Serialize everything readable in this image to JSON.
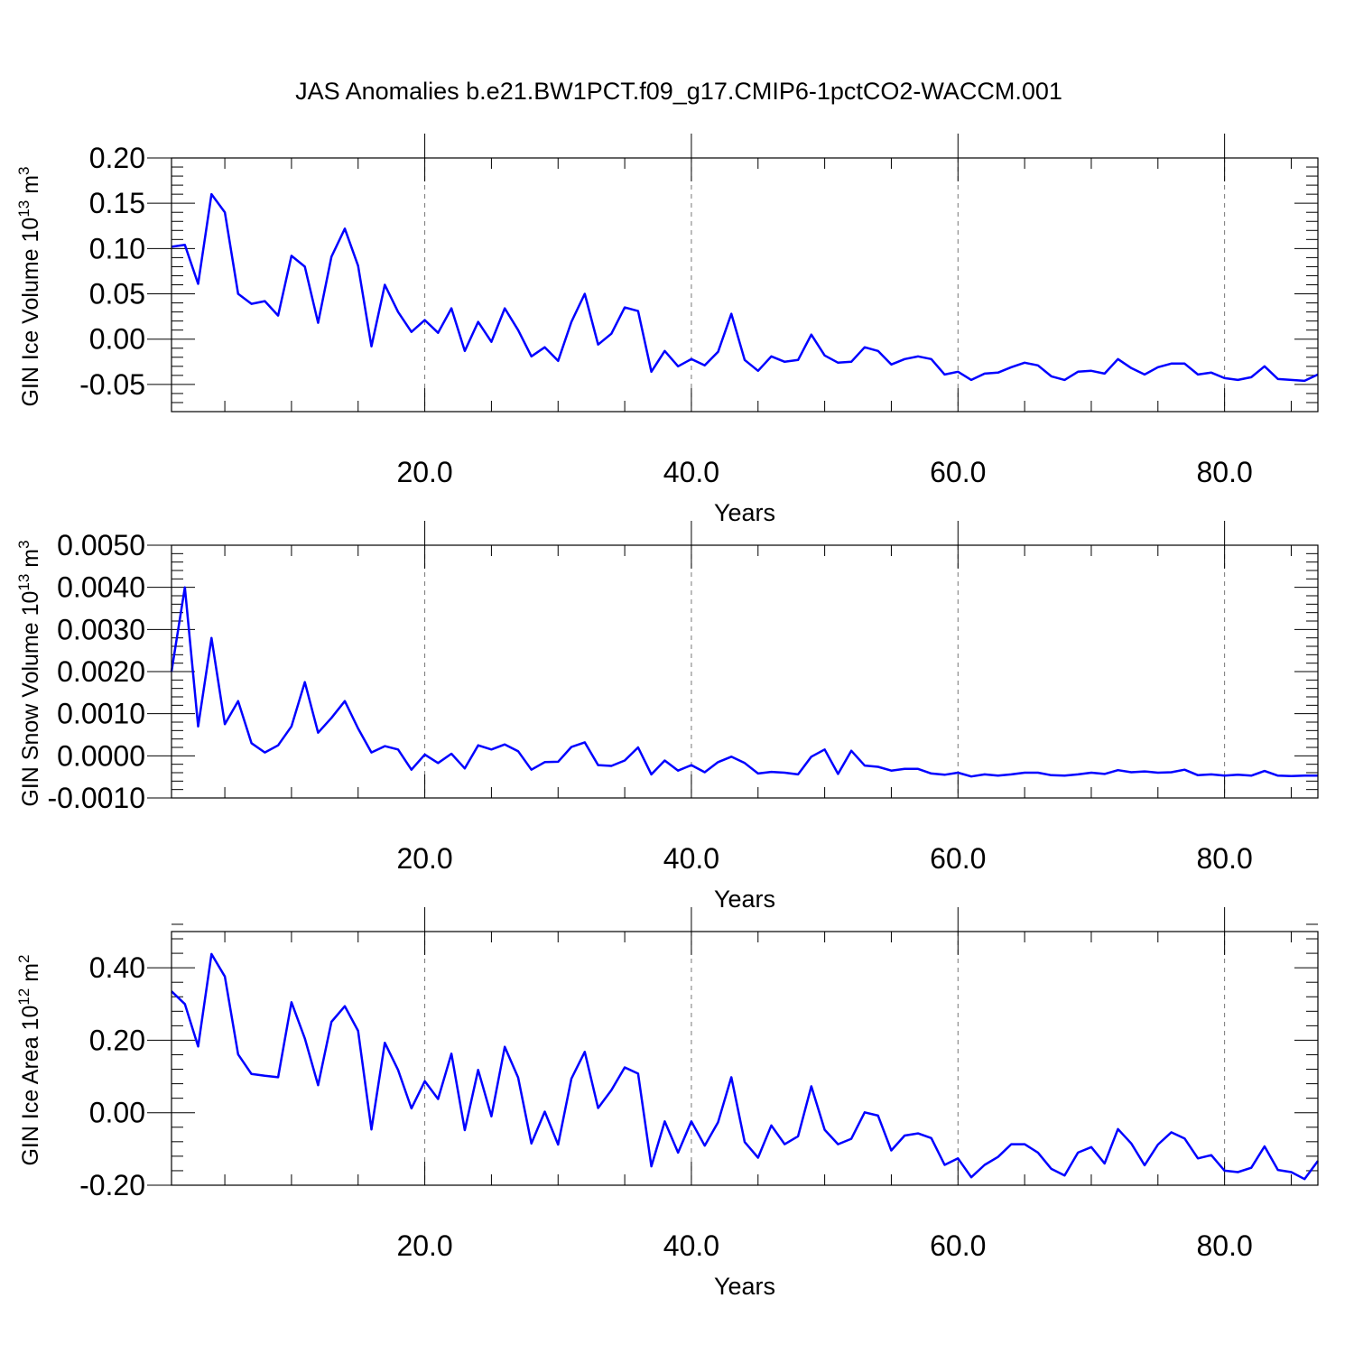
{
  "page_title": "JAS Anomalies b.e21.BW1PCT.f09_g17.CMIP6-1pctCO2-WACCM.001",
  "chart_data": [
    {
      "type": "line",
      "title": "",
      "xlabel": "Years",
      "ylabel": {
        "text": "GIN Ice Volume 10",
        "sup": "13",
        "unit": " m",
        "unit_sup": "3"
      },
      "xlim": [
        1,
        87
      ],
      "ylim": [
        -0.08,
        0.2
      ],
      "xticks": [
        20,
        40,
        60,
        80
      ],
      "xtick_labels": [
        "20.0",
        "40.0",
        "60.0",
        "80.0"
      ],
      "yticks": [
        -0.05,
        0.0,
        0.05,
        0.1,
        0.15,
        0.2
      ],
      "ytick_labels": [
        "-0.05",
        "0.00",
        "0.05",
        "0.10",
        "0.15",
        "0.20"
      ],
      "y_minor_step": 0.01,
      "grid": "vertical dashed at major x ticks",
      "color": "#0000ff",
      "x_start": 1,
      "values": [
        0.102,
        0.104,
        0.061,
        0.16,
        0.14,
        0.05,
        0.039,
        0.042,
        0.026,
        0.092,
        0.08,
        0.018,
        0.091,
        0.122,
        0.081,
        -0.008,
        0.06,
        0.03,
        0.008,
        0.021,
        0.007,
        0.034,
        -0.013,
        0.019,
        -0.003,
        0.034,
        0.01,
        -0.019,
        -0.009,
        -0.024,
        0.019,
        0.05,
        -0.006,
        0.006,
        0.035,
        0.031,
        -0.036,
        -0.013,
        -0.03,
        -0.022,
        -0.029,
        -0.014,
        0.028,
        -0.023,
        -0.035,
        -0.019,
        -0.025,
        -0.023,
        0.005,
        -0.018,
        -0.026,
        -0.025,
        -0.009,
        -0.013,
        -0.028,
        -0.022,
        -0.019,
        -0.022,
        -0.039,
        -0.036,
        -0.045,
        -0.038,
        -0.037,
        -0.031,
        -0.026,
        -0.029,
        -0.041,
        -0.045,
        -0.036,
        -0.035,
        -0.038,
        -0.022,
        -0.032,
        -0.039,
        -0.031,
        -0.027,
        -0.027,
        -0.039,
        -0.037,
        -0.043,
        -0.045,
        -0.042,
        -0.03,
        -0.044,
        -0.045,
        -0.046,
        -0.039
      ]
    },
    {
      "type": "line",
      "title": "",
      "xlabel": "Years",
      "ylabel": {
        "text": "GIN Snow Volume 10",
        "sup": "13",
        "unit": " m",
        "unit_sup": "3"
      },
      "xlim": [
        1,
        87
      ],
      "ylim": [
        -0.001,
        0.005
      ],
      "xticks": [
        20,
        40,
        60,
        80
      ],
      "xtick_labels": [
        "20.0",
        "40.0",
        "60.0",
        "80.0"
      ],
      "yticks": [
        -0.001,
        0.0,
        0.001,
        0.002,
        0.003,
        0.004,
        0.005
      ],
      "ytick_labels": [
        "-0.0010",
        "0.0000",
        "0.0010",
        "0.0020",
        "0.0030",
        "0.0040",
        "0.0050"
      ],
      "y_minor_step": 0.0002,
      "grid": "vertical dashed at major x ticks",
      "color": "#0000ff",
      "x_start": 1,
      "values": [
        0.002,
        0.004,
        0.0007,
        0.0028,
        0.00075,
        0.0013,
        0.0003,
        8e-05,
        0.00025,
        0.0007,
        0.00175,
        0.00055,
        0.0009,
        0.0013,
        0.00065,
        8e-05,
        0.00023,
        0.00015,
        -0.00033,
        3e-05,
        -0.00017,
        5e-05,
        -0.0003,
        0.00025,
        0.00015,
        0.00027,
        0.00011,
        -0.00033,
        -0.00015,
        -0.00014,
        0.00021,
        0.00032,
        -0.00022,
        -0.00024,
        -0.00011,
        0.0002,
        -0.00044,
        -0.00011,
        -0.00035,
        -0.00022,
        -0.00039,
        -0.00015,
        -2e-05,
        -0.00017,
        -0.00042,
        -0.00038,
        -0.0004,
        -0.00044,
        -2e-05,
        0.00015,
        -0.00043,
        0.00012,
        -0.00023,
        -0.00026,
        -0.00035,
        -0.00031,
        -0.00031,
        -0.00042,
        -0.00045,
        -0.0004,
        -0.00049,
        -0.00044,
        -0.00047,
        -0.00044,
        -0.0004,
        -0.0004,
        -0.00046,
        -0.00047,
        -0.00044,
        -0.0004,
        -0.00043,
        -0.00034,
        -0.00039,
        -0.00037,
        -0.0004,
        -0.00039,
        -0.00033,
        -0.00046,
        -0.00044,
        -0.00047,
        -0.00045,
        -0.00047,
        -0.00036,
        -0.00047,
        -0.00048,
        -0.00047,
        -0.00047
      ]
    },
    {
      "type": "line",
      "title": "",
      "xlabel": "Years",
      "ylabel": {
        "text": "GIN Ice Area 10",
        "sup": "12",
        "unit": " m",
        "unit_sup": "2"
      },
      "xlim": [
        1,
        87
      ],
      "ylim": [
        -0.2,
        0.5
      ],
      "xticks": [
        20,
        40,
        60,
        80
      ],
      "xtick_labels": [
        "20.0",
        "40.0",
        "60.0",
        "80.0"
      ],
      "yticks": [
        -0.2,
        0.0,
        0.2,
        0.4
      ],
      "ytick_labels": [
        "-0.20",
        "0.00",
        "0.20",
        "0.40"
      ],
      "y_minor_step": 0.04,
      "grid": "vertical dashed at major x ticks",
      "color": "#0000ff",
      "x_start": 1,
      "values": [
        0.335,
        0.3,
        0.183,
        0.438,
        0.376,
        0.161,
        0.107,
        0.102,
        0.098,
        0.305,
        0.205,
        0.076,
        0.251,
        0.294,
        0.226,
        -0.046,
        0.193,
        0.118,
        0.012,
        0.087,
        0.038,
        0.163,
        -0.048,
        0.118,
        -0.01,
        0.182,
        0.097,
        -0.085,
        0.003,
        -0.088,
        0.094,
        0.168,
        0.013,
        0.062,
        0.125,
        0.108,
        -0.148,
        -0.024,
        -0.11,
        -0.024,
        -0.091,
        -0.026,
        0.098,
        -0.081,
        -0.124,
        -0.035,
        -0.087,
        -0.065,
        0.073,
        -0.047,
        -0.087,
        -0.072,
        0.001,
        -0.008,
        -0.104,
        -0.063,
        -0.057,
        -0.07,
        -0.144,
        -0.126,
        -0.178,
        -0.144,
        -0.122,
        -0.087,
        -0.087,
        -0.11,
        -0.155,
        -0.173,
        -0.11,
        -0.095,
        -0.14,
        -0.045,
        -0.085,
        -0.145,
        -0.088,
        -0.054,
        -0.071,
        -0.126,
        -0.117,
        -0.16,
        -0.164,
        -0.152,
        -0.093,
        -0.158,
        -0.164,
        -0.183,
        -0.133
      ]
    }
  ]
}
